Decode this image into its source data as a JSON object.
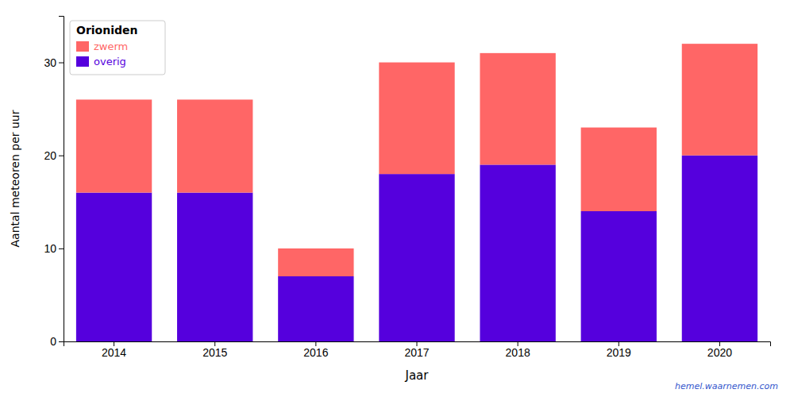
{
  "chart_data": {
    "type": "bar",
    "stacked": true,
    "categories": [
      "2014",
      "2015",
      "2016",
      "2017",
      "2018",
      "2019",
      "2020"
    ],
    "series": [
      {
        "name": "overig",
        "color": "#5500dd",
        "values": [
          16,
          16,
          7,
          18,
          19,
          14,
          20
        ]
      },
      {
        "name": "zwerm",
        "color": "#ff6666",
        "values": [
          10,
          10,
          3,
          12,
          12,
          9,
          12
        ]
      }
    ],
    "xlabel": "Jaar",
    "ylabel": "Aantal meteoren per uur",
    "ylim": [
      0,
      35
    ],
    "yticks": [
      0,
      10,
      20,
      30
    ],
    "grid": false,
    "legend": "upper left",
    "legend_title": "Orioniden",
    "annotations": [
      {
        "text": "hemel.waarnemen.com",
        "color": "#3355cc"
      }
    ]
  }
}
